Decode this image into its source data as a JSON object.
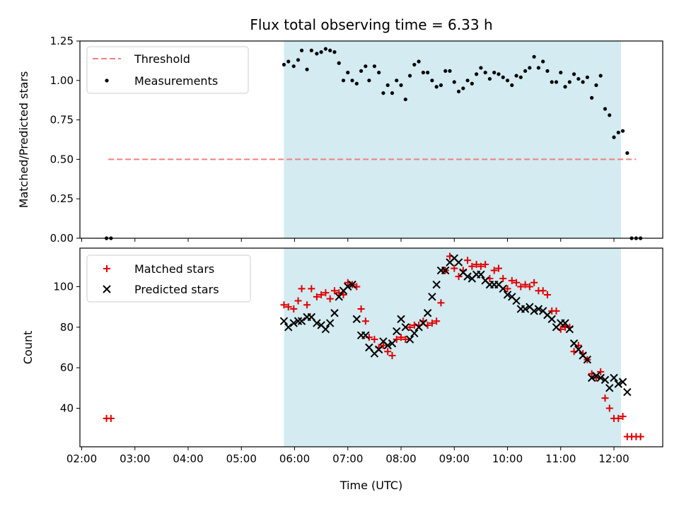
{
  "chart_data": {
    "title": "Flux total observing time = 6.33 h",
    "xlabel": "Time (UTC)",
    "x_tick_labels": [
      "02:00",
      "03:00",
      "04:00",
      "05:00",
      "06:00",
      "07:00",
      "08:00",
      "09:00",
      "10:00",
      "11:00",
      "12:00"
    ],
    "x_range": [
      "01:58",
      "12:55"
    ],
    "shaded_interval": [
      "05:48",
      "12:08"
    ],
    "colors": {
      "shade": "#d3ebf1",
      "threshold": "#f08080",
      "matched": "#e00000",
      "predicted": "#000000",
      "measurement": "#000000"
    },
    "top": {
      "type": "scatter",
      "ylabel": "Matched/Predicted stars",
      "ylim": [
        0,
        1.25
      ],
      "y_ticks": [
        "0.00",
        "0.25",
        "0.50",
        "0.75",
        "1.00",
        "1.25"
      ],
      "legend": [
        "Threshold",
        "Measurements"
      ],
      "legend_loc": "upper-left",
      "threshold": {
        "value": 0.5,
        "x_start": "02:30",
        "x_end": "12:25"
      },
      "measurements": [
        [
          "02:28",
          0
        ],
        [
          "02:33",
          0
        ],
        [
          "05:48",
          1.1
        ],
        [
          "05:53",
          1.12
        ],
        [
          "05:59",
          1.09
        ],
        [
          "06:04",
          1.13
        ],
        [
          "06:08",
          1.19
        ],
        [
          "06:14",
          1.07
        ],
        [
          "06:19",
          1.19
        ],
        [
          "06:25",
          1.17
        ],
        [
          "06:30",
          1.18
        ],
        [
          "06:35",
          1.2
        ],
        [
          "06:40",
          1.19
        ],
        [
          "06:45",
          1.18
        ],
        [
          "06:50",
          1.11
        ],
        [
          "06:55",
          1.0
        ],
        [
          "07:00",
          1.05
        ],
        [
          "07:05",
          1.0
        ],
        [
          "07:10",
          0.98
        ],
        [
          "07:15",
          1.06
        ],
        [
          "07:20",
          1.09
        ],
        [
          "07:24",
          1.0
        ],
        [
          "07:30",
          1.09
        ],
        [
          "07:35",
          1.05
        ],
        [
          "07:40",
          0.92
        ],
        [
          "07:45",
          0.97
        ],
        [
          "07:50",
          0.92
        ],
        [
          "07:55",
          1.0
        ],
        [
          "08:00",
          0.97
        ],
        [
          "08:05",
          0.88
        ],
        [
          "08:10",
          1.03
        ],
        [
          "08:15",
          1.1
        ],
        [
          "08:20",
          1.12
        ],
        [
          "08:25",
          1.05
        ],
        [
          "08:30",
          1.05
        ],
        [
          "08:35",
          1.0
        ],
        [
          "08:40",
          0.96
        ],
        [
          "08:45",
          0.97
        ],
        [
          "08:50",
          1.06
        ],
        [
          "08:55",
          1.06
        ],
        [
          "09:00",
          0.99
        ],
        [
          "09:05",
          0.93
        ],
        [
          "09:10",
          0.95
        ],
        [
          "09:15",
          1.0
        ],
        [
          "09:20",
          0.98
        ],
        [
          "09:25",
          1.04
        ],
        [
          "09:30",
          1.08
        ],
        [
          "09:35",
          1.05
        ],
        [
          "09:40",
          1.01
        ],
        [
          "09:45",
          1.05
        ],
        [
          "09:50",
          1.04
        ],
        [
          "09:55",
          1.02
        ],
        [
          "10:00",
          1.0
        ],
        [
          "10:05",
          0.97
        ],
        [
          "10:10",
          1.03
        ],
        [
          "10:15",
          1.02
        ],
        [
          "10:20",
          1.06
        ],
        [
          "10:25",
          1.08
        ],
        [
          "10:30",
          1.15
        ],
        [
          "10:35",
          1.08
        ],
        [
          "10:40",
          1.12
        ],
        [
          "10:45",
          1.06
        ],
        [
          "10:50",
          0.99
        ],
        [
          "10:55",
          0.99
        ],
        [
          "11:00",
          1.05
        ],
        [
          "11:05",
          0.96
        ],
        [
          "11:10",
          0.99
        ],
        [
          "11:15",
          1.04
        ],
        [
          "11:20",
          1.01
        ],
        [
          "11:25",
          0.99
        ],
        [
          "11:30",
          1.02
        ],
        [
          "11:35",
          0.89
        ],
        [
          "11:40",
          0.97
        ],
        [
          "11:45",
          1.03
        ],
        [
          "11:50",
          0.82
        ],
        [
          "11:55",
          0.78
        ],
        [
          "12:00",
          0.64
        ],
        [
          "12:05",
          0.67
        ],
        [
          "12:10",
          0.68
        ],
        [
          "12:15",
          0.54
        ],
        [
          "12:20",
          0
        ],
        [
          "12:25",
          0
        ],
        [
          "12:30",
          0
        ]
      ]
    },
    "bottom": {
      "type": "scatter",
      "ylabel": "Count",
      "ylim": [
        21,
        119
      ],
      "y_ticks": [
        "40",
        "60",
        "80",
        "100"
      ],
      "legend": [
        "Matched stars",
        "Predicted stars"
      ],
      "legend_loc": "upper-left",
      "matched": [
        [
          "02:28",
          35
        ],
        [
          "02:33",
          35
        ],
        [
          "05:48",
          91
        ],
        [
          "05:53",
          90
        ],
        [
          "05:59",
          89
        ],
        [
          "06:04",
          93
        ],
        [
          "06:08",
          99
        ],
        [
          "06:14",
          91
        ],
        [
          "06:19",
          99
        ],
        [
          "06:25",
          95
        ],
        [
          "06:30",
          96
        ],
        [
          "06:35",
          97
        ],
        [
          "06:40",
          94
        ],
        [
          "06:45",
          98
        ],
        [
          "06:50",
          97
        ],
        [
          "06:55",
          96
        ],
        [
          "07:00",
          102
        ],
        [
          "07:05",
          101
        ],
        [
          "07:10",
          100
        ],
        [
          "07:15",
          89
        ],
        [
          "07:20",
          83
        ],
        [
          "07:24",
          75
        ],
        [
          "07:30",
          74
        ],
        [
          "07:35",
          70
        ],
        [
          "07:40",
          71
        ],
        [
          "07:45",
          68
        ],
        [
          "07:50",
          66
        ],
        [
          "07:55",
          74
        ],
        [
          "08:00",
          75
        ],
        [
          "08:05",
          74
        ],
        [
          "08:10",
          80
        ],
        [
          "08:15",
          81
        ],
        [
          "08:20",
          81
        ],
        [
          "08:25",
          83
        ],
        [
          "08:30",
          81
        ],
        [
          "08:35",
          82
        ],
        [
          "08:40",
          83
        ],
        [
          "08:45",
          92
        ],
        [
          "08:50",
          108
        ],
        [
          "08:55",
          115
        ],
        [
          "09:00",
          109
        ],
        [
          "09:05",
          105
        ],
        [
          "09:10",
          108
        ],
        [
          "09:15",
          113
        ],
        [
          "09:20",
          110
        ],
        [
          "09:25",
          111
        ],
        [
          "09:30",
          110
        ],
        [
          "09:35",
          111
        ],
        [
          "09:40",
          104
        ],
        [
          "09:45",
          108
        ],
        [
          "09:50",
          109
        ],
        [
          "09:55",
          104
        ],
        [
          "10:00",
          99
        ],
        [
          "10:05",
          103
        ],
        [
          "10:10",
          102
        ],
        [
          "10:15",
          100
        ],
        [
          "10:20",
          101
        ],
        [
          "10:25",
          100
        ],
        [
          "10:30",
          102
        ],
        [
          "10:35",
          98
        ],
        [
          "10:40",
          98
        ],
        [
          "10:45",
          96
        ],
        [
          "10:50",
          88
        ],
        [
          "10:55",
          88
        ],
        [
          "11:00",
          79
        ],
        [
          "11:05",
          80
        ],
        [
          "11:10",
          80
        ],
        [
          "11:15",
          68
        ],
        [
          "11:20",
          71
        ],
        [
          "11:25",
          67
        ],
        [
          "11:30",
          64
        ],
        [
          "11:35",
          57
        ],
        [
          "11:40",
          55
        ],
        [
          "11:45",
          58
        ],
        [
          "11:50",
          45
        ],
        [
          "11:55",
          40
        ],
        [
          "12:00",
          35
        ],
        [
          "12:05",
          35
        ],
        [
          "12:10",
          36
        ],
        [
          "12:15",
          26
        ],
        [
          "12:20",
          26
        ],
        [
          "12:25",
          26
        ],
        [
          "12:30",
          26
        ]
      ],
      "predicted": [
        [
          "05:48",
          83
        ],
        [
          "05:53",
          80
        ],
        [
          "05:59",
          82
        ],
        [
          "06:04",
          83
        ],
        [
          "06:08",
          83
        ],
        [
          "06:14",
          85
        ],
        [
          "06:19",
          85
        ],
        [
          "06:25",
          82
        ],
        [
          "06:30",
          81
        ],
        [
          "06:35",
          79
        ],
        [
          "06:40",
          82
        ],
        [
          "06:45",
          87
        ],
        [
          "06:50",
          95
        ],
        [
          "06:55",
          98
        ],
        [
          "07:00",
          100
        ],
        [
          "07:05",
          101
        ],
        [
          "07:10",
          84
        ],
        [
          "07:15",
          76
        ],
        [
          "07:20",
          76
        ],
        [
          "07:24",
          70
        ],
        [
          "07:30",
          67
        ],
        [
          "07:35",
          69
        ],
        [
          "07:40",
          73
        ],
        [
          "07:45",
          71
        ],
        [
          "07:50",
          72
        ],
        [
          "07:55",
          78
        ],
        [
          "08:00",
          84
        ],
        [
          "08:05",
          80
        ],
        [
          "08:10",
          74
        ],
        [
          "08:15",
          77
        ],
        [
          "08:20",
          80
        ],
        [
          "08:25",
          82
        ],
        [
          "08:30",
          87
        ],
        [
          "08:35",
          95
        ],
        [
          "08:40",
          101
        ],
        [
          "08:45",
          108
        ],
        [
          "08:50",
          108
        ],
        [
          "08:55",
          112
        ],
        [
          "09:00",
          114
        ],
        [
          "09:05",
          112
        ],
        [
          "09:10",
          107
        ],
        [
          "09:15",
          105
        ],
        [
          "09:20",
          104
        ],
        [
          "09:25",
          106
        ],
        [
          "09:30",
          106
        ],
        [
          "09:35",
          103
        ],
        [
          "09:40",
          101
        ],
        [
          "09:45",
          101
        ],
        [
          "09:50",
          101
        ],
        [
          "09:55",
          99
        ],
        [
          "10:00",
          96
        ],
        [
          "10:05",
          95
        ],
        [
          "10:10",
          93
        ],
        [
          "10:15",
          89
        ],
        [
          "10:20",
          89
        ],
        [
          "10:25",
          90
        ],
        [
          "10:30",
          88
        ],
        [
          "10:35",
          89
        ],
        [
          "10:40",
          88
        ],
        [
          "10:45",
          86
        ],
        [
          "10:50",
          84
        ],
        [
          "10:55",
          80
        ],
        [
          "11:00",
          82
        ],
        [
          "11:05",
          82
        ],
        [
          "11:10",
          79
        ],
        [
          "11:15",
          72
        ],
        [
          "11:20",
          69
        ],
        [
          "11:25",
          66
        ],
        [
          "11:30",
          64
        ],
        [
          "11:35",
          55
        ],
        [
          "11:40",
          56
        ],
        [
          "11:45",
          55
        ],
        [
          "11:50",
          54
        ],
        [
          "11:55",
          50
        ],
        [
          "12:00",
          55
        ],
        [
          "12:05",
          52
        ],
        [
          "12:10",
          53
        ],
        [
          "12:15",
          48
        ]
      ]
    }
  }
}
